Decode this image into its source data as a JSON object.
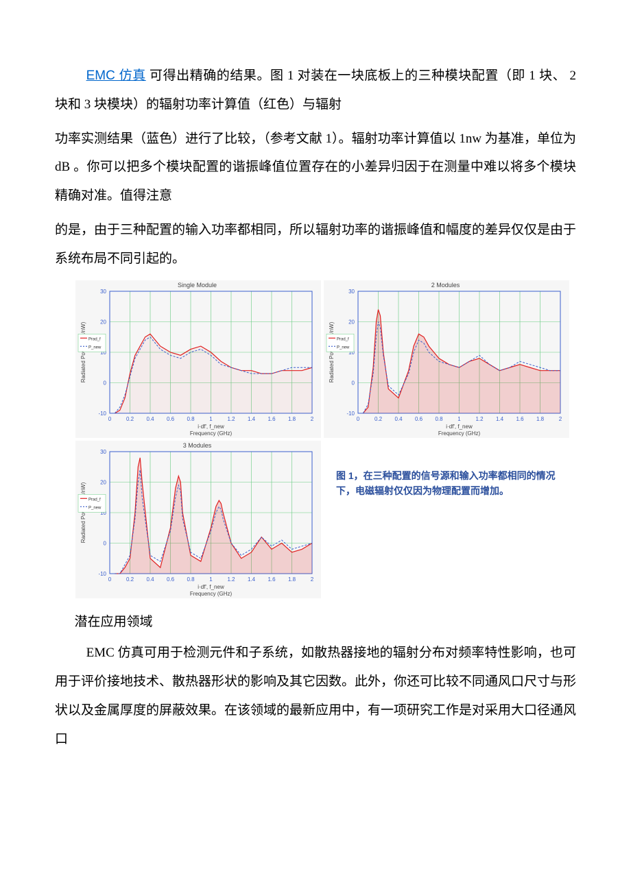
{
  "paragraphs": {
    "p1_link": "EMC 仿真",
    "p1_a": " 可得出精确的结果。图  1 对装在一块底板上的三种模块配置（即  1 块、 2 块和 3 块模块）的辐射功率计算值（红色）与辐射",
    "p2": "功率实测结果（蓝色）进行了比较，（参考文献 1）。辐射功率计算值以 1nw 为基准，单位为 dB 。你可以把多个模块配置的谐振峰值位置存在的小差异归因于在测量中难以将多个模块精确对准。值得注意",
    "p3": "的是，由于三种配置的输入功率都相同，所以辐射功率的谐振峰值和幅度的差异仅仅是由于系统布局不同引起的。",
    "h1": "潜在应用领域",
    "p4": "EMC 仿真可用于检测元件和子系统，如散热器接地的辐射分布对频率特性影响，也可用于评价接地技术、散热器形状的影响及其它因数。此外，你还可比较不同通风口尺寸与形状以及金属厚度的屏蔽效果。在该领域的最新应用中，有一项研究工作是对采用大口径通风口"
  },
  "figure_caption": {
    "line1": "图 1，在三种配置的信号源和输入功率都相同的情况",
    "line2": "下，电磁辐射仅仅因为物理配置而增加。"
  },
  "charts": {
    "common": {
      "xlim": [
        0,
        2.0
      ],
      "ylim": [
        -10,
        30
      ],
      "xtick_step": 0.2,
      "ytick_step": 10,
      "xlabel_top": "i·df', f_new",
      "xlabel_bottom": "Frequency (GHz)",
      "ylabel": "Radiated Power (dB/nW)",
      "legend": [
        "Prad_f",
        "P_new"
      ],
      "background": "#f6f6f6",
      "grid_color": "#66cc80",
      "axis_color": "#3a5fcd",
      "series": [
        {
          "name": "Prad_f",
          "color": "#e02020",
          "style": "solid",
          "width": 1.2
        },
        {
          "name": "P_new",
          "color": "#3a5fcd",
          "style": "dashed",
          "width": 1.0
        }
      ],
      "font_size": 8,
      "title_fontsize": 9
    },
    "panels": [
      {
        "title": "Single Module",
        "x": [
          0.05,
          0.1,
          0.15,
          0.2,
          0.25,
          0.3,
          0.35,
          0.4,
          0.45,
          0.5,
          0.6,
          0.7,
          0.8,
          0.9,
          1.0,
          1.1,
          1.2,
          1.3,
          1.4,
          1.5,
          1.6,
          1.7,
          1.8,
          1.9,
          2.0
        ],
        "red": [
          -10,
          -9,
          -5,
          3,
          9,
          12,
          15,
          16,
          14,
          12,
          10,
          9,
          11,
          12,
          10,
          7,
          5,
          4,
          4,
          3,
          3,
          4,
          4,
          4,
          5
        ],
        "blue": [
          -10,
          -8,
          -4,
          2,
          8,
          11,
          14,
          15,
          13,
          11,
          9,
          8,
          10,
          11,
          9,
          6,
          5,
          4,
          3,
          3,
          3,
          4,
          5,
          5,
          5
        ]
      },
      {
        "title": "2 Modules",
        "x": [
          0.05,
          0.1,
          0.15,
          0.18,
          0.2,
          0.22,
          0.25,
          0.3,
          0.4,
          0.5,
          0.55,
          0.6,
          0.65,
          0.7,
          0.8,
          0.9,
          1.0,
          1.1,
          1.2,
          1.3,
          1.4,
          1.5,
          1.6,
          1.7,
          1.8,
          1.9,
          2.0
        ],
        "red": [
          -10,
          -8,
          5,
          20,
          24,
          22,
          10,
          -2,
          -5,
          4,
          12,
          16,
          15,
          12,
          8,
          6,
          5,
          7,
          8,
          6,
          4,
          5,
          6,
          5,
          4,
          4,
          4
        ],
        "blue": [
          -10,
          -7,
          3,
          15,
          20,
          18,
          9,
          -1,
          -4,
          3,
          10,
          14,
          13,
          10,
          7,
          6,
          5,
          7,
          9,
          6,
          4,
          5,
          7,
          6,
          5,
          4,
          4
        ]
      },
      {
        "title": "3 Modules",
        "x": [
          0.05,
          0.1,
          0.15,
          0.2,
          0.25,
          0.28,
          0.3,
          0.32,
          0.4,
          0.5,
          0.6,
          0.65,
          0.68,
          0.7,
          0.72,
          0.8,
          0.9,
          1.0,
          1.05,
          1.08,
          1.1,
          1.12,
          1.2,
          1.3,
          1.4,
          1.5,
          1.6,
          1.7,
          1.8,
          1.9,
          2.0
        ],
        "red": [
          -10,
          -10,
          -8,
          -5,
          10,
          25,
          28,
          20,
          -5,
          -8,
          5,
          18,
          22,
          20,
          10,
          -4,
          -6,
          5,
          12,
          14,
          13,
          10,
          0,
          -5,
          -3,
          2,
          -2,
          0,
          -3,
          -2,
          0
        ],
        "blue": [
          -10,
          -10,
          -7,
          -4,
          8,
          20,
          24,
          15,
          -4,
          -6,
          4,
          15,
          19,
          17,
          8,
          -3,
          -5,
          4,
          10,
          12,
          11,
          8,
          0,
          -4,
          -2,
          2,
          -1,
          1,
          -2,
          -1,
          0
        ]
      }
    ]
  }
}
